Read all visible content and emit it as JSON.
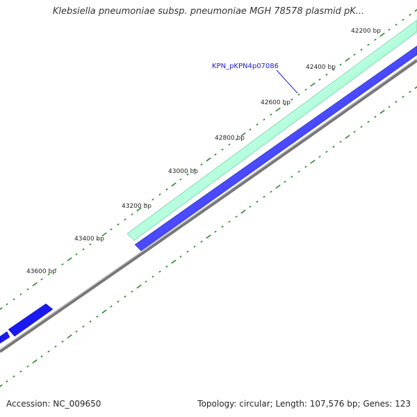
{
  "map": {
    "title": "Klebsiella pneumoniae subsp. pneumoniae MGH 78578 plasmid pK...",
    "accession_label": "Accession: NC_009650",
    "summary_label": "Topology: circular; Length: 107,576 bp; Genes: 123",
    "feature_label": "KPN_pKPN4p07086",
    "tick_labels": [
      "42200 bp",
      "42400 bp",
      "42600 bp",
      "42800 bp",
      "43000 bp",
      "43200 bp",
      "43400 bp",
      "43600 bp"
    ],
    "colors": {
      "outer_gene": "#2ed98f",
      "outer_gene_highlight": "#b8ffe0",
      "inner_gene": "#1a1af0",
      "backbone": "#888888",
      "tick": "#2a8a2a"
    }
  }
}
